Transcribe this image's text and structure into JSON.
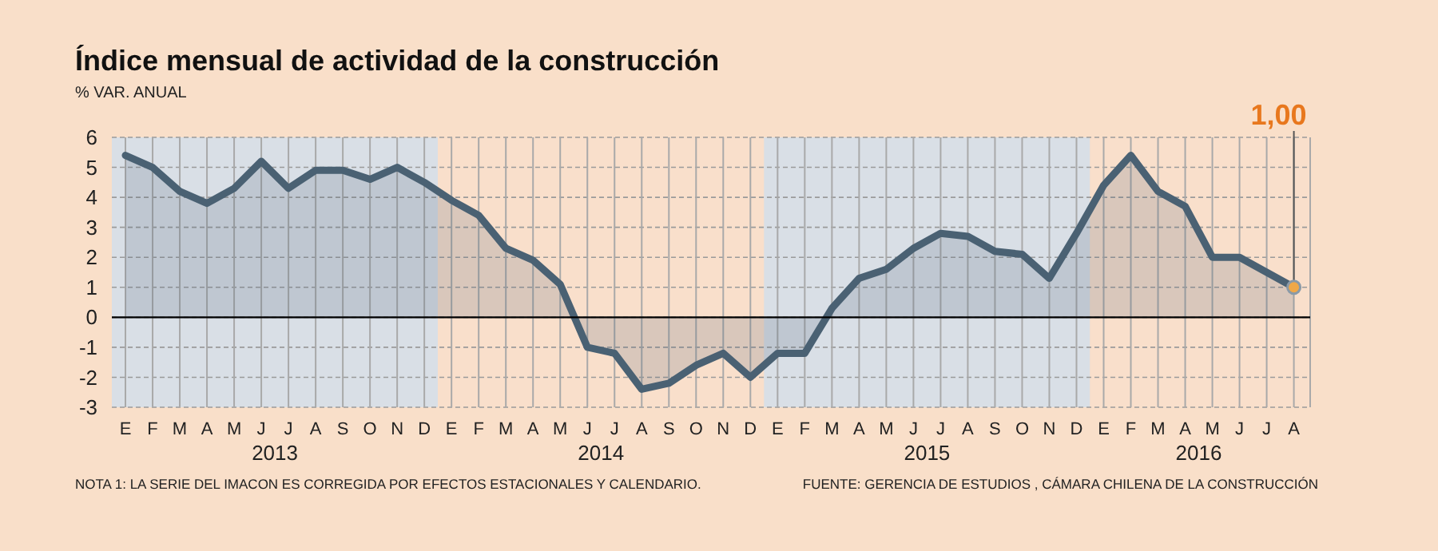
{
  "chart_data": {
    "type": "area",
    "title": "Índice mensual de actividad de la construcción",
    "subtitle": "% VAR. ANUAL",
    "categories": [
      "E",
      "F",
      "M",
      "A",
      "M",
      "J",
      "J",
      "A",
      "S",
      "O",
      "N",
      "D",
      "E",
      "F",
      "M",
      "A",
      "M",
      "J",
      "J",
      "A",
      "S",
      "O",
      "N",
      "D",
      "E",
      "F",
      "M",
      "A",
      "M",
      "J",
      "J",
      "A",
      "S",
      "O",
      "N",
      "D",
      "E",
      "F",
      "M",
      "A",
      "M",
      "J",
      "J",
      "A"
    ],
    "series": [
      {
        "color": "#4a6173",
        "values": [
          5.4,
          5.0,
          4.2,
          3.8,
          4.3,
          5.2,
          4.3,
          4.9,
          4.9,
          4.6,
          5.0,
          4.5,
          3.9,
          3.4,
          2.3,
          1.9,
          1.1,
          -1.0,
          -1.2,
          -2.4,
          -2.2,
          -1.6,
          -1.2,
          -2.0,
          -1.2,
          -1.2,
          0.3,
          1.3,
          1.6,
          2.3,
          2.8,
          2.7,
          2.2,
          2.1,
          1.3,
          2.8,
          4.4,
          5.4,
          4.2,
          3.7,
          2.0,
          2.0,
          1.5,
          1.0
        ],
        "value_labels": [
          null,
          null,
          null,
          null,
          null,
          null,
          null,
          null,
          null,
          null,
          null,
          null,
          null,
          null,
          null,
          null,
          null,
          null,
          null,
          null,
          null,
          null,
          null,
          null,
          null,
          null,
          null,
          null,
          null,
          null,
          null,
          null,
          null,
          null,
          null,
          null,
          null,
          null,
          null,
          null,
          null,
          null,
          null,
          "1,00"
        ]
      }
    ],
    "ylim": [
      -3,
      6
    ],
    "yticks": [
      -3,
      -2,
      -1,
      0,
      1,
      2,
      3,
      4,
      5,
      6
    ],
    "grid": true,
    "annotations": [
      "2013",
      "2014",
      "2015",
      "2016",
      "NOTA 1: LA SERIE DEL IMACON ES CORREGIDA POR EFECTOS ESTACIONALES Y CALENDARIO.",
      "FUENTE: GERENCIA DE ESTUDIOS , CÁMARA CHILENA DE LA CONSTRUCCIÓN"
    ]
  }
}
